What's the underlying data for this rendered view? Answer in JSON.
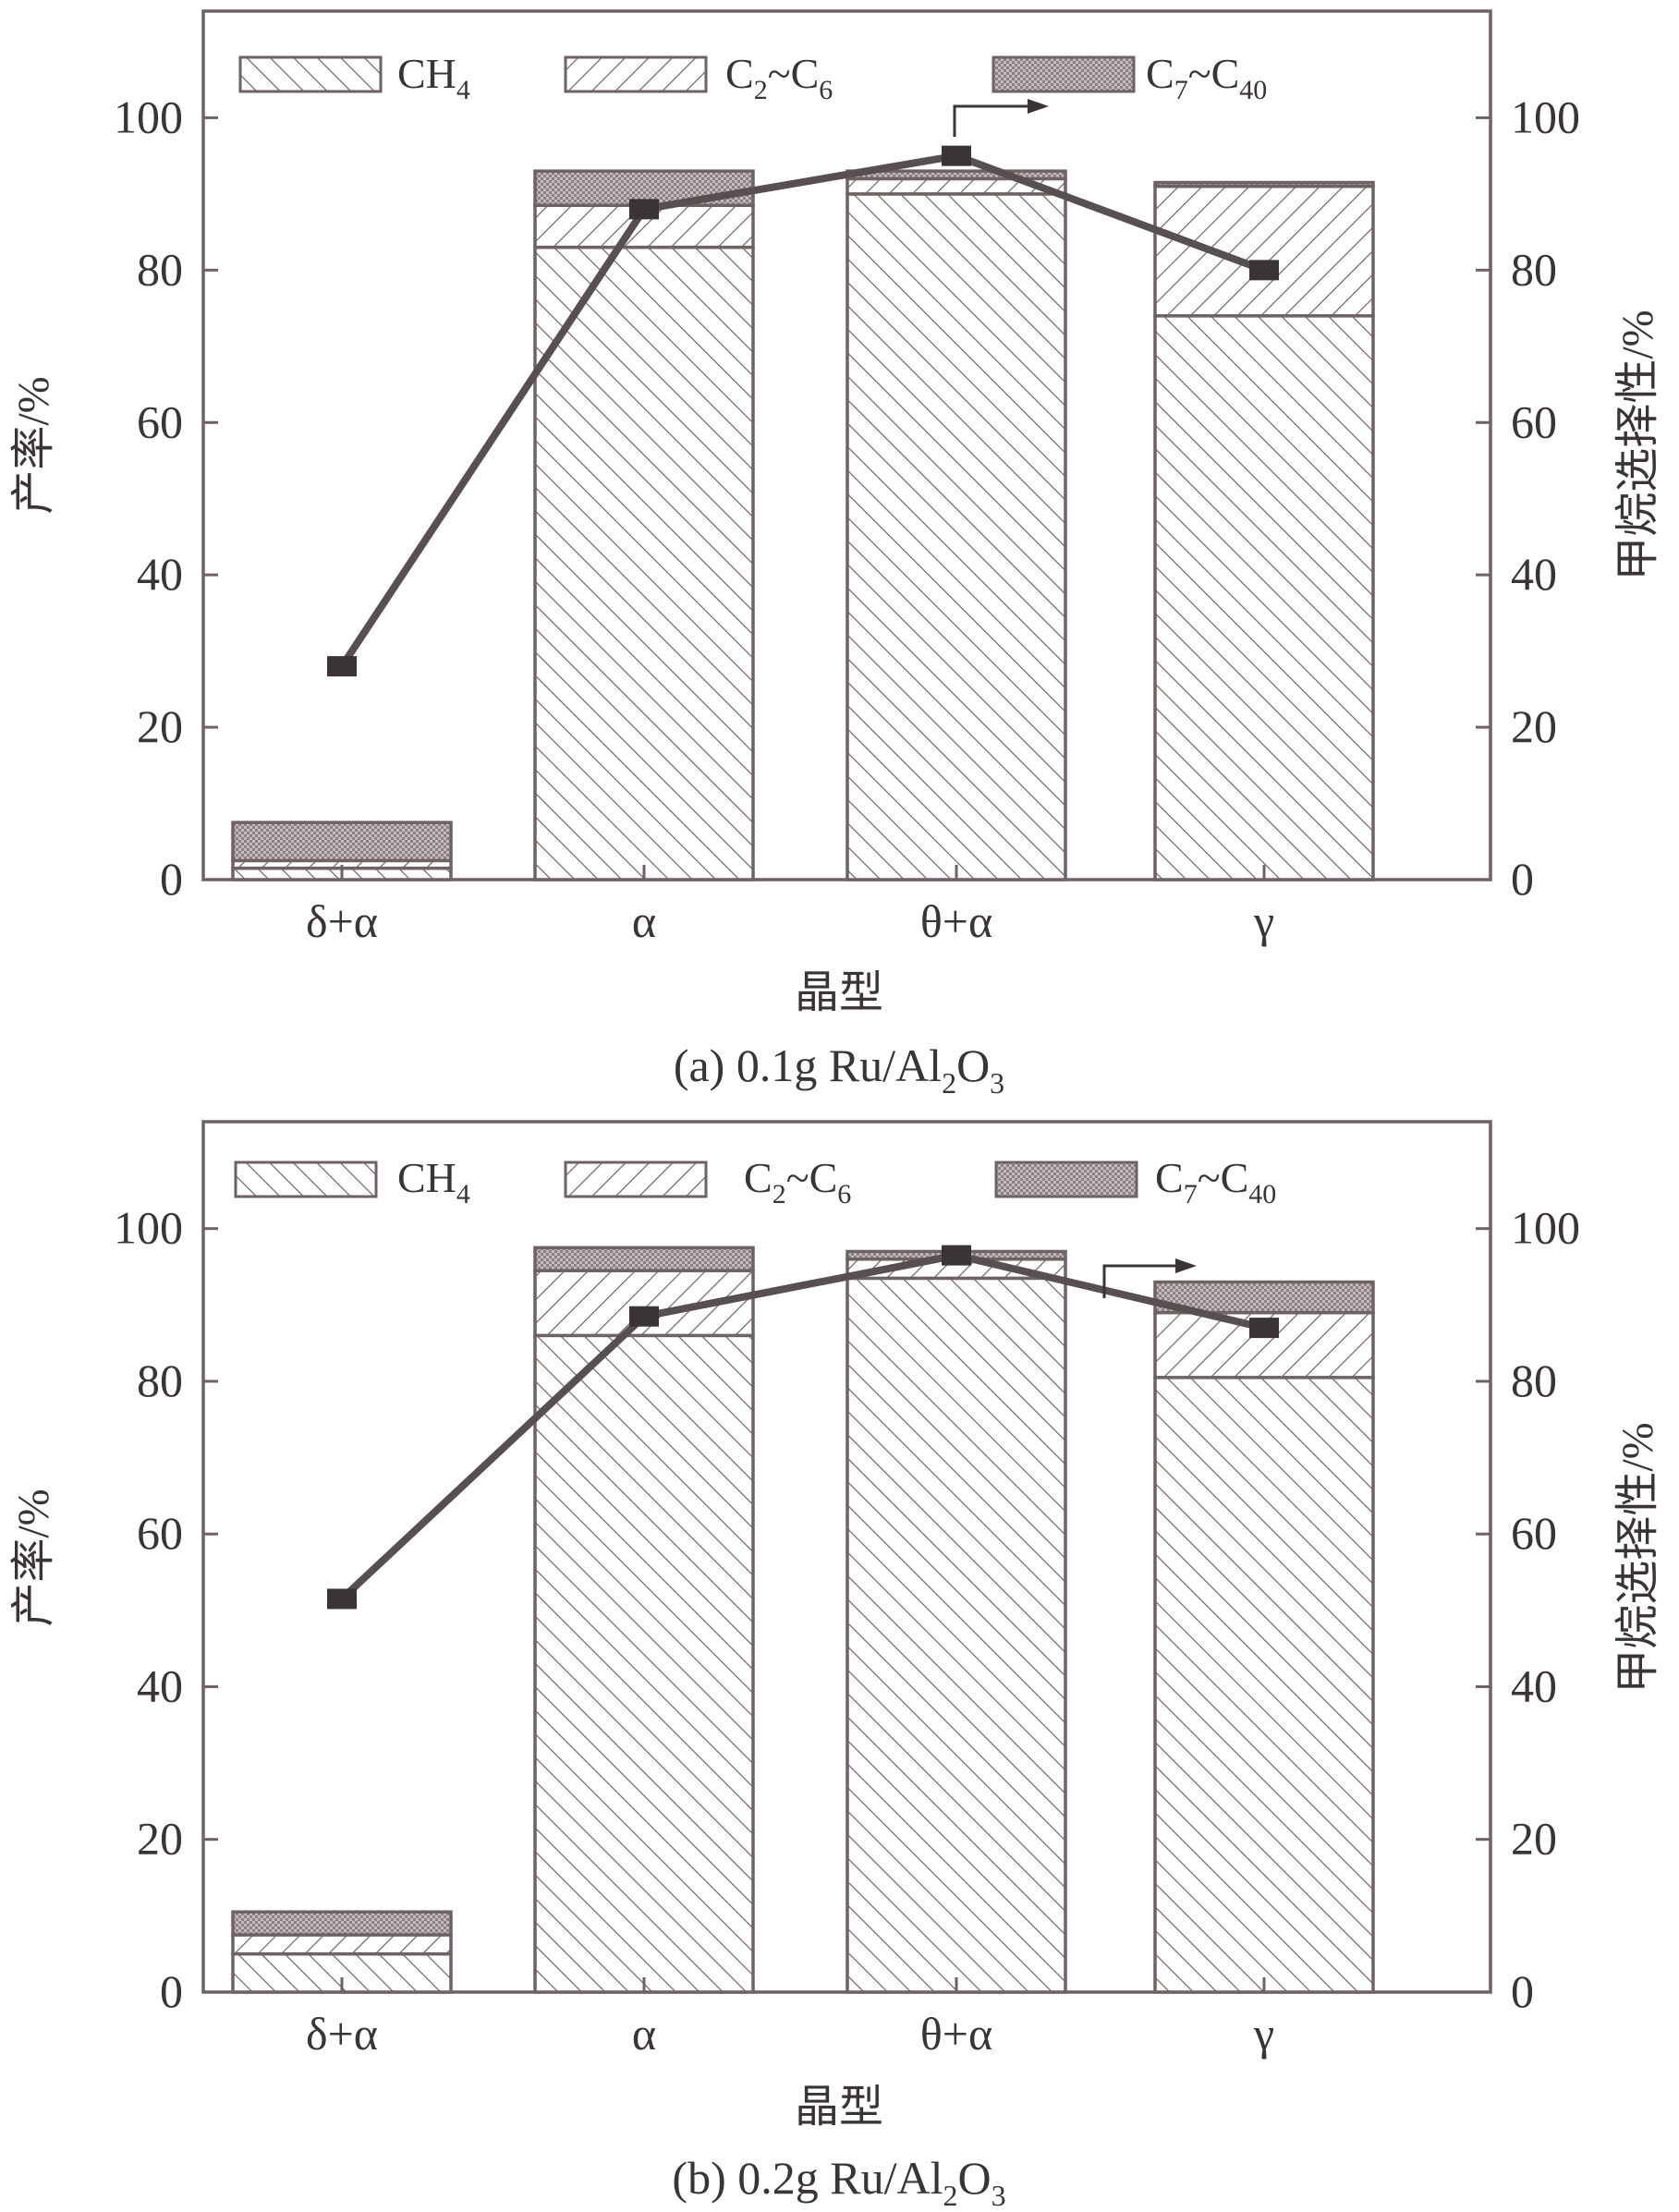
{
  "colors": {
    "stroke": "#6e6362",
    "line": "#585050",
    "background": "#ffffff"
  },
  "legend": {
    "ch4": {
      "main": "CH",
      "sub": "4"
    },
    "c2c6": {
      "p1": "C",
      "s1": "2",
      "mid": "~C",
      "s2": "6"
    },
    "c7c40": {
      "p1": "C",
      "s1": "7",
      "mid": "~C",
      "s2": "40"
    }
  },
  "caption_parts": {
    "a": {
      "pre": "(a) 0.1g Ru/Al",
      "s1": "2",
      "mid": "O",
      "s2": "3"
    },
    "b": {
      "pre": "(b) 0.2g Ru/Al",
      "s1": "2",
      "mid": "O",
      "s2": "3"
    }
  },
  "chart_data": [
    {
      "type": "bar",
      "stacked": true,
      "title": "(a) 0.1g Ru/Al2O3",
      "xlabel": "晶型",
      "ylabel": "产率/%",
      "y2label": "甲烷选择性/%",
      "ylim": [
        0,
        114
      ],
      "y2lim": [
        0,
        114
      ],
      "yticks": [
        0,
        20,
        40,
        60,
        80,
        100
      ],
      "categories": [
        "δ+α",
        "α",
        "θ+α",
        "γ"
      ],
      "series": [
        {
          "name": "CH4",
          "pattern": "hatch-forward",
          "values": [
            1.5,
            83,
            90,
            74
          ]
        },
        {
          "name": "C2~C6",
          "pattern": "hatch-back",
          "values": [
            1.0,
            5.5,
            2.0,
            17
          ]
        },
        {
          "name": "C7~C40",
          "pattern": "dots",
          "values": [
            5.0,
            4.5,
            1.0,
            0.5
          ]
        }
      ],
      "line": {
        "axis": "right",
        "values": [
          28,
          88,
          95,
          80
        ]
      },
      "legend_position": "top",
      "grid": false
    },
    {
      "type": "bar",
      "stacked": true,
      "title": "(b) 0.2g Ru/Al2O3",
      "xlabel": "晶型",
      "ylabel": "产率/%",
      "y2label": "甲烷选择性/%",
      "ylim": [
        0,
        114
      ],
      "y2lim": [
        0,
        114
      ],
      "yticks": [
        0,
        20,
        40,
        60,
        80,
        100
      ],
      "categories": [
        "δ+α",
        "α",
        "θ+α",
        "γ"
      ],
      "series": [
        {
          "name": "CH4",
          "pattern": "hatch-forward",
          "values": [
            5,
            86,
            93.5,
            80.5
          ]
        },
        {
          "name": "C2~C6",
          "pattern": "hatch-back",
          "values": [
            2.5,
            8.5,
            2.5,
            8.5
          ]
        },
        {
          "name": "C7~C40",
          "pattern": "dots",
          "values": [
            3,
            3,
            1,
            4
          ]
        }
      ],
      "line": {
        "axis": "right",
        "values": [
          51.5,
          88.5,
          96.5,
          87
        ]
      },
      "legend_position": "top",
      "grid": false
    }
  ]
}
